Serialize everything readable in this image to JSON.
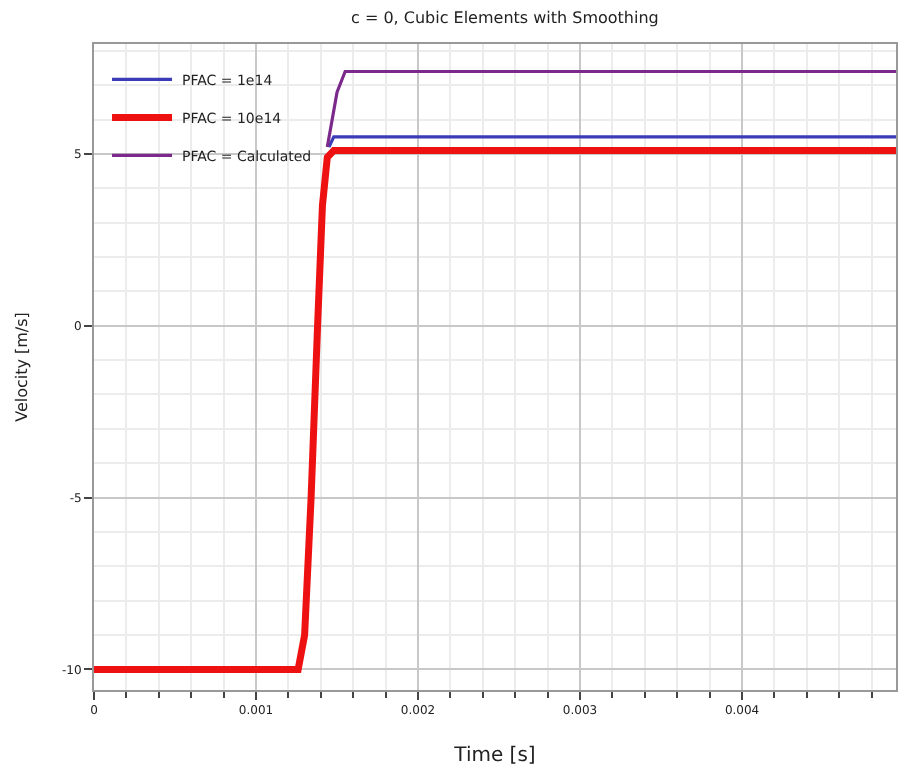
{
  "chart_data": {
    "type": "line",
    "title": "c = 0, Cubic Elements with Smoothing",
    "xlabel": "Time [s]",
    "ylabel": "Velocity [m/s]",
    "xlim": [
      0,
      0.00495
    ],
    "xticks": [
      0,
      0.001,
      0.002,
      0.003,
      0.004
    ],
    "ylim": [
      -10.6,
      8.2
    ],
    "yticks": [
      -10,
      -5,
      0,
      5
    ],
    "grid": true,
    "legend": "top left",
    "marker": "none",
    "line_style": "solid",
    "series": [
      {
        "name": "PFAC = 1e14",
        "color": "#3b3bb8",
        "x": [
          0.00145,
          0.00148,
          0.00495
        ],
        "values": [
          5.2,
          5.5,
          5.5
        ]
      },
      {
        "name": "PFAC = 10e14",
        "color": "#ee1111",
        "x": [
          0,
          0.00126,
          0.0013,
          0.00134,
          0.00138,
          0.00141,
          0.00144,
          0.00148,
          0.00495
        ],
        "values": [
          -10,
          -10,
          -9,
          -5,
          0,
          3.5,
          4.9,
          5.1,
          5.1
        ]
      },
      {
        "name": "PFAC = Calculated",
        "color": "#7b2a8c",
        "x": [
          0.00144,
          0.0015,
          0.00155,
          0.00495
        ],
        "values": [
          5.2,
          6.8,
          7.4,
          7.4
        ]
      }
    ]
  }
}
